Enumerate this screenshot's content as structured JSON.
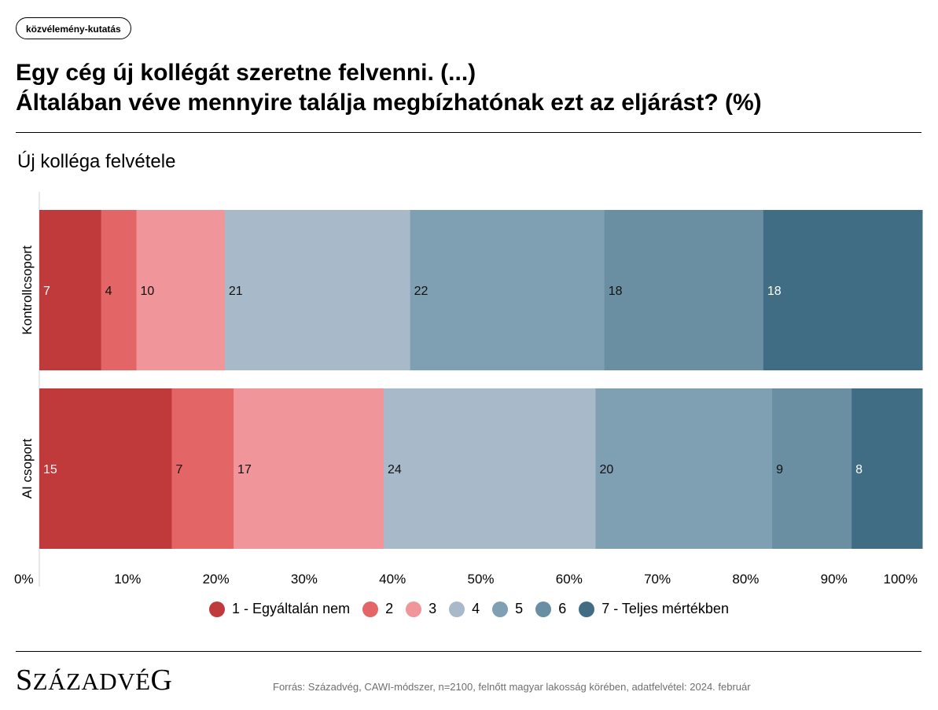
{
  "header": {
    "badge": "közvélemény-kutatás",
    "title_line1": "Egy cég új kollégát szeretne felvenni. (...)",
    "title_line2": "Általában véve mennyire találja megbízhatónak ezt az eljárást? (%)"
  },
  "chart_data": {
    "type": "bar",
    "orientation": "horizontal",
    "stacked": true,
    "title": "Új kolléga felvétele",
    "categories": [
      "Kontrollcsoport",
      "AI csoport"
    ],
    "series": [
      {
        "name": "1 - Egyáltalán nem",
        "values": [
          7,
          15
        ],
        "color": "#c0393b"
      },
      {
        "name": "2",
        "values": [
          4,
          7
        ],
        "color": "#e36565"
      },
      {
        "name": "3",
        "values": [
          10,
          17
        ],
        "color": "#f0959a"
      },
      {
        "name": "4",
        "values": [
          21,
          24
        ],
        "color": "#a8b9ca"
      },
      {
        "name": "5",
        "values": [
          22,
          20
        ],
        "color": "#7f9fb3"
      },
      {
        "name": "6",
        "values": [
          18,
          9
        ],
        "color": "#6a8fa3"
      },
      {
        "name": "7 - Teljes mértékben",
        "values": [
          18,
          8
        ],
        "color": "#416d84"
      }
    ],
    "xlim": [
      0,
      100
    ],
    "xticks": [
      "0%",
      "10%",
      "20%",
      "30%",
      "40%",
      "50%",
      "60%",
      "70%",
      "80%",
      "90%",
      "100%"
    ],
    "legend_position": "bottom",
    "grid": false
  },
  "footer": {
    "logo": "Századvég",
    "source": "Forrás: Századvég, CAWI-módszer, n=2100, felnőtt magyar lakosság körében, adatfelvétel: 2024. február"
  }
}
